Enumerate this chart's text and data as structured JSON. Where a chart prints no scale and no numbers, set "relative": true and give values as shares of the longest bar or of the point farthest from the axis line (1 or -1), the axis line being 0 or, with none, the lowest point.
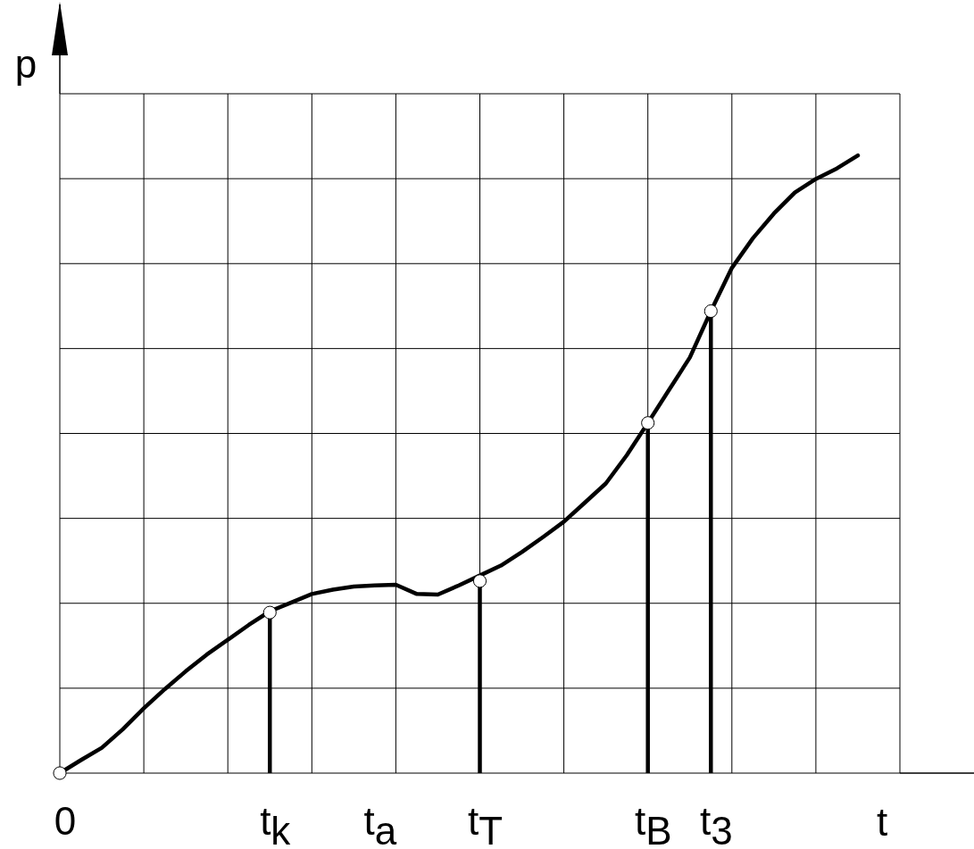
{
  "chart_data": {
    "type": "line",
    "relative": true,
    "xlabel": "t",
    "ylabel": "p",
    "grid": true,
    "categories": [
      "0",
      null,
      null,
      null,
      null,
      null,
      null,
      null,
      null,
      null,
      "t$_{k}$",
      null,
      null,
      null,
      null,
      "t$_{a}$",
      null,
      null,
      null,
      null,
      "t$_{T}$",
      null,
      null,
      null,
      null,
      null,
      null,
      null,
      "t$_{B}$",
      null,
      null,
      "t$_{3}$",
      null,
      null,
      null,
      null,
      null,
      null,
      null,
      null,
      null
    ],
    "series": [
      {
        "color": "#000000",
        "marker": "none",
        "values": [
          0,
          0.021,
          0.041,
          0.071,
          0.105,
          0.136,
          0.165,
          0.192,
          0.216,
          0.24,
          0.262,
          0.276,
          0.29,
          0.297,
          0.302,
          0.304,
          0.305,
          0.29,
          0.289,
          0.304,
          0.32,
          0.336,
          0.358,
          0.382,
          0.407,
          0.438,
          0.469,
          0.515,
          0.567,
          0.62,
          0.673,
          0.748,
          0.818,
          0.866,
          0.906,
          0.94,
          0.962,
          0.979,
          1.0,
          null,
          null
        ]
      },
      {
        "type": "lollipop",
        "color": "#000000",
        "marker": "circle",
        "values": [
          0,
          null,
          null,
          null,
          null,
          null,
          null,
          null,
          null,
          null,
          0.26,
          null,
          null,
          null,
          null,
          null,
          null,
          null,
          null,
          null,
          0.311,
          null,
          null,
          null,
          null,
          null,
          null,
          null,
          0.567,
          null,
          null,
          0.748,
          null,
          null,
          null,
          null,
          null,
          null,
          null,
          null,
          null
        ]
      }
    ]
  }
}
